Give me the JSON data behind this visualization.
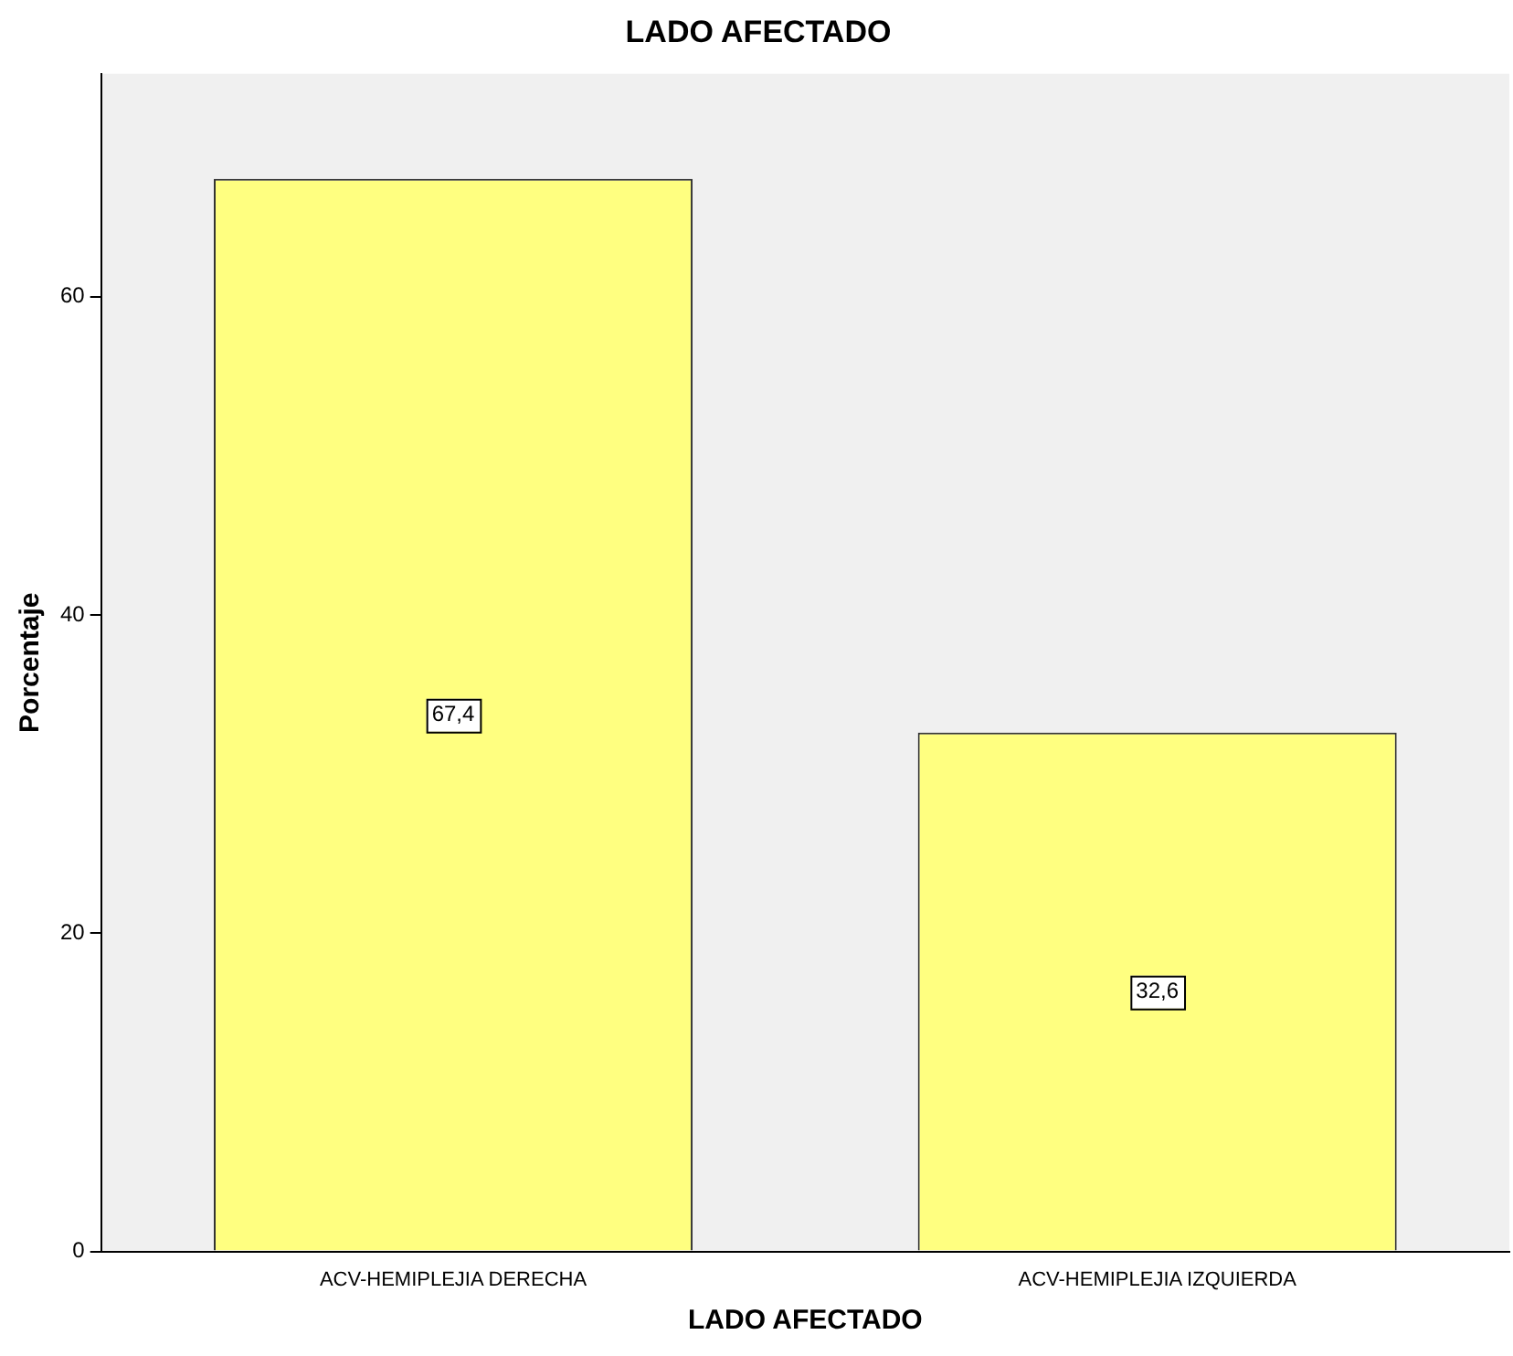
{
  "chart_data": {
    "type": "bar",
    "title": "LADO AFECTADO",
    "xlabel": "LADO AFECTADO",
    "ylabel": "Porcentaje",
    "categories": [
      "ACV-HEMIPLEJIA DERECHA",
      "ACV-HEMIPLEJIA IZQUIERDA"
    ],
    "values": [
      67.4,
      32.6
    ],
    "value_labels": [
      "67,4",
      "32,6"
    ],
    "color": "#ffff80",
    "ylim": [
      0,
      74
    ],
    "yticks": [
      0,
      20,
      40,
      60
    ],
    "grid": false,
    "legend": false
  }
}
